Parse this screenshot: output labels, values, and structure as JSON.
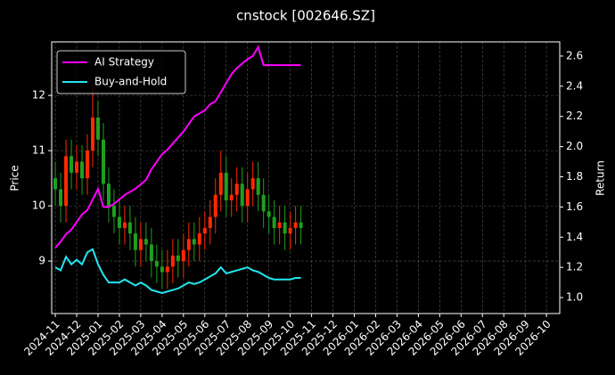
{
  "chart_data": {
    "type": "candlestick",
    "title": "cnstock [002646.SZ]",
    "ylabel": "Price",
    "y2label": "Return",
    "x": [
      0,
      0.25,
      0.5,
      0.75,
      1,
      1.25,
      1.5,
      1.75,
      2,
      2.25,
      2.5,
      2.75,
      3,
      3.25,
      3.5,
      3.75,
      4,
      4.25,
      4.5,
      4.75,
      5,
      5.25,
      5.5,
      5.75,
      6,
      6.25,
      6.5,
      6.75,
      7,
      7.25,
      7.5,
      7.75,
      8,
      8.25,
      8.5,
      8.75,
      9,
      9.25,
      9.5,
      9.75,
      10,
      10.25,
      10.5,
      10.75,
      11,
      11.25,
      11.5
    ],
    "open": [
      10.5,
      10.3,
      10.0,
      10.9,
      10.6,
      10.8,
      10.5,
      11.0,
      11.6,
      11.2,
      10.4,
      10.0,
      9.8,
      9.6,
      9.7,
      9.5,
      9.2,
      9.4,
      9.3,
      9.0,
      8.9,
      8.8,
      8.9,
      9.1,
      9.0,
      9.2,
      9.4,
      9.3,
      9.5,
      9.6,
      9.8,
      10.2,
      10.6,
      10.1,
      10.2,
      10.4,
      10.0,
      10.3,
      10.5,
      10.2,
      9.9,
      9.8,
      9.6,
      9.7,
      9.5,
      9.6,
      9.7
    ],
    "high": [
      10.8,
      10.6,
      11.2,
      11.2,
      11.1,
      11.1,
      11.3,
      12.2,
      11.9,
      11.5,
      10.7,
      10.3,
      10.1,
      10.0,
      10.0,
      9.8,
      9.7,
      9.7,
      9.6,
      9.3,
      9.2,
      9.2,
      9.4,
      9.4,
      9.5,
      9.7,
      9.7,
      9.8,
      9.9,
      10.1,
      10.5,
      11.0,
      10.9,
      10.5,
      10.7,
      10.7,
      10.6,
      10.8,
      10.8,
      10.5,
      10.2,
      10.1,
      10.0,
      10.0,
      9.9,
      10.0,
      10.0
    ],
    "low": [
      10.0,
      9.7,
      9.7,
      10.3,
      10.3,
      10.2,
      10.2,
      10.7,
      10.9,
      10.1,
      9.7,
      9.5,
      9.3,
      9.3,
      9.2,
      8.9,
      8.9,
      9.0,
      8.7,
      8.6,
      8.5,
      8.5,
      8.6,
      8.7,
      8.7,
      8.9,
      9.0,
      9.0,
      9.2,
      9.3,
      9.5,
      9.9,
      9.8,
      9.8,
      9.9,
      9.7,
      9.7,
      10.0,
      9.9,
      9.6,
      9.5,
      9.3,
      9.3,
      9.2,
      9.2,
      9.3,
      9.3
    ],
    "close": [
      10.3,
      10.0,
      10.9,
      10.6,
      10.8,
      10.5,
      11.0,
      11.6,
      11.2,
      10.4,
      10.0,
      9.8,
      9.6,
      9.7,
      9.5,
      9.2,
      9.4,
      9.3,
      9.0,
      8.9,
      8.8,
      8.9,
      9.1,
      9.0,
      9.2,
      9.4,
      9.3,
      9.5,
      9.6,
      9.8,
      10.2,
      10.6,
      10.1,
      10.2,
      10.4,
      10.0,
      10.3,
      10.5,
      10.2,
      9.9,
      9.8,
      9.6,
      9.7,
      9.5,
      9.6,
      9.7,
      9.6
    ],
    "up_color": "#ff2a00",
    "down_color": "#1fa01f",
    "series": [
      {
        "name": "AI Strategy",
        "color": "#ff00ff",
        "axis": "y2",
        "values": [
          1.33,
          1.37,
          1.42,
          1.45,
          1.5,
          1.55,
          1.58,
          1.65,
          1.72,
          1.6,
          1.6,
          1.62,
          1.65,
          1.68,
          1.7,
          1.72,
          1.75,
          1.78,
          1.85,
          1.9,
          1.95,
          1.98,
          2.02,
          2.06,
          2.1,
          2.15,
          2.2,
          2.22,
          2.24,
          2.28,
          2.3,
          2.36,
          2.42,
          2.48,
          2.52,
          2.55,
          2.58,
          2.6,
          2.66,
          2.54,
          2.54,
          2.54,
          2.54,
          2.54,
          2.54,
          2.54,
          2.54
        ]
      },
      {
        "name": "Buy-and-Hold",
        "color": "#22e5f0",
        "axis": "y2",
        "values": [
          1.2,
          1.18,
          1.27,
          1.22,
          1.25,
          1.22,
          1.3,
          1.32,
          1.22,
          1.15,
          1.1,
          1.1,
          1.1,
          1.12,
          1.1,
          1.08,
          1.1,
          1.08,
          1.05,
          1.04,
          1.03,
          1.04,
          1.05,
          1.06,
          1.08,
          1.1,
          1.09,
          1.1,
          1.12,
          1.14,
          1.16,
          1.2,
          1.16,
          1.17,
          1.18,
          1.19,
          1.2,
          1.18,
          1.17,
          1.15,
          1.13,
          1.12,
          1.12,
          1.12,
          1.12,
          1.13,
          1.13
        ]
      }
    ],
    "xlim": [
      -0.17,
      23.62
    ],
    "xticks": [
      {
        "value": 0,
        "label": "2024-11"
      },
      {
        "value": 1,
        "label": "2024-12"
      },
      {
        "value": 2,
        "label": "2025-01"
      },
      {
        "value": 3,
        "label": "2025-02"
      },
      {
        "value": 4,
        "label": "2025-03"
      },
      {
        "value": 5,
        "label": "2025-04"
      },
      {
        "value": 6,
        "label": "2025-05"
      },
      {
        "value": 7,
        "label": "2025-06"
      },
      {
        "value": 8,
        "label": "2025-07"
      },
      {
        "value": 9,
        "label": "2025-08"
      },
      {
        "value": 10,
        "label": "2025-09"
      },
      {
        "value": 11,
        "label": "2025-10"
      },
      {
        "value": 12,
        "label": "2025-11"
      },
      {
        "value": 13,
        "label": "2025-12"
      },
      {
        "value": 14,
        "label": "2026-01"
      },
      {
        "value": 15,
        "label": "2026-02"
      },
      {
        "value": 16,
        "label": "2026-03"
      },
      {
        "value": 17,
        "label": "2026-04"
      },
      {
        "value": 18,
        "label": "2026-05"
      },
      {
        "value": 19,
        "label": "2026-06"
      },
      {
        "value": 20,
        "label": "2026-07"
      },
      {
        "value": 21,
        "label": "2026-08"
      },
      {
        "value": 22,
        "label": "2026-09"
      },
      {
        "value": 23,
        "label": "2026-10"
      }
    ],
    "ylim": [
      8.05,
      12.97
    ],
    "yticks": [
      9,
      10,
      11,
      12
    ],
    "y2lim": [
      0.894,
      2.694
    ],
    "y2ticks": [
      {
        "value": 1,
        "label": "1.0"
      },
      1.2,
      1.4,
      1.6,
      1.8,
      {
        "value": 2,
        "label": "2.0"
      },
      2.2,
      2.4,
      2.6
    ],
    "grid": true,
    "legend": "upper left"
  }
}
